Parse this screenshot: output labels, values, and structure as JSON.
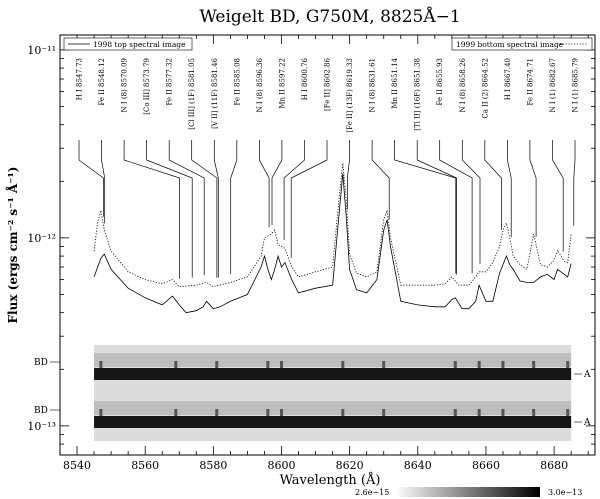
{
  "chart_data": {
    "type": "line",
    "title": "Weigelt BD, G750M, 8825Å−1",
    "xlabel": "Wavelength (Å)",
    "ylabel": "Flux (ergs cm⁻² s⁻¹ Å⁻¹)",
    "xlim": [
      8535,
      8692
    ],
    "ylim": [
      7e-14,
      1.2e-11
    ],
    "yscale": "log",
    "x_ticks": [
      8540,
      8560,
      8580,
      8600,
      8620,
      8640,
      8660,
      8680
    ],
    "y_ticks": [
      {
        "value": 1e-11,
        "label": "10⁻¹¹"
      },
      {
        "value": 1e-12,
        "label": "10⁻¹²"
      },
      {
        "value": 1e-13,
        "label": "10⁻¹³"
      }
    ],
    "legend": {
      "left": {
        "label": "1998 top spectral image",
        "placement": "top-left"
      },
      "right": {
        "label": "1999 bottom spectral image",
        "placement": "top-right"
      }
    },
    "series": [
      {
        "name": "1998 top spectral image",
        "style": "solid",
        "color": "#000000",
        "x": [
          8545,
          8547,
          8548,
          8550,
          8555,
          8560,
          8565,
          8568,
          8570,
          8572,
          8575,
          8577,
          8578,
          8580,
          8582,
          8585,
          8590,
          8594,
          8595,
          8596,
          8597,
          8598,
          8599,
          8600,
          8601,
          8603,
          8605,
          8610,
          8615,
          8617,
          8618,
          8619,
          8620,
          8622,
          8625,
          8628,
          8630,
          8631,
          8632,
          8635,
          8640,
          8645,
          8648,
          8650,
          8651,
          8653,
          8655,
          8657,
          8658,
          8660,
          8662,
          8664,
          8666,
          8667,
          8668,
          8670,
          8672,
          8674,
          8676,
          8678,
          8680,
          8681,
          8683,
          8684,
          8685
        ],
        "y": [
          6.2e-13,
          7.8e-13,
          8.2e-13,
          6.8e-13,
          5.4e-13,
          4.8e-13,
          4.4e-13,
          4.9e-13,
          4.4e-13,
          4e-13,
          4.1e-13,
          4.3e-13,
          4.6e-13,
          4.2e-13,
          4.3e-13,
          4.6e-13,
          5e-13,
          7e-13,
          8e-13,
          6.8e-13,
          6e-13,
          6.8e-13,
          8e-13,
          7e-13,
          7.4e-13,
          6e-13,
          5.1e-13,
          5.4e-13,
          5.6e-13,
          1.4e-12,
          2.2e-12,
          1.3e-12,
          6.8e-13,
          5.3e-13,
          5.1e-13,
          6e-13,
          1.1e-12,
          1.25e-12,
          9e-13,
          4.6e-13,
          4.4e-13,
          4.3e-13,
          4.3e-13,
          4.7e-13,
          4.8e-13,
          4.2e-13,
          4.2e-13,
          4.6e-13,
          5.6e-13,
          4.6e-13,
          4.6e-13,
          6.5e-13,
          8e-13,
          7.2e-13,
          6.8e-13,
          5.9e-13,
          5.8e-13,
          5.8e-13,
          6.2e-13,
          6.4e-13,
          6e-13,
          6.8e-13,
          6.4e-13,
          6.2e-13,
          7.3e-13
        ]
      },
      {
        "name": "1999 bottom spectral image",
        "style": "dotted",
        "color": "#000000",
        "x": [
          8545,
          8546,
          8547,
          8548,
          8550,
          8555,
          8560,
          8565,
          8568,
          8570,
          8575,
          8578,
          8580,
          8585,
          8590,
          8594,
          8595,
          8597,
          8598,
          8599,
          8600,
          8601,
          8603,
          8605,
          8610,
          8615,
          8617,
          8618,
          8619,
          8620,
          8622,
          8625,
          8628,
          8630,
          8631,
          8632,
          8635,
          8640,
          8645,
          8648,
          8650,
          8652,
          8655,
          8657,
          8658,
          8660,
          8662,
          8664,
          8665,
          8666,
          8667,
          8668,
          8670,
          8672,
          8674,
          8676,
          8678,
          8680,
          8681,
          8683,
          8684,
          8685
        ],
        "y": [
          8.5e-13,
          1.2e-12,
          1.4e-12,
          1.1e-12,
          8.5e-13,
          6.6e-13,
          6e-13,
          5.7e-13,
          6e-13,
          5.5e-13,
          5.6e-13,
          5.8e-13,
          5.5e-13,
          5.8e-13,
          6.2e-13,
          8e-13,
          1e-12,
          1.05e-12,
          1.1e-12,
          9.2e-13,
          9e-13,
          8.8e-13,
          7e-13,
          6.2e-13,
          6.6e-13,
          7e-13,
          1.7e-12,
          2.5e-12,
          1.6e-12,
          8.2e-13,
          6.5e-13,
          6.2e-13,
          6.6e-13,
          1.25e-12,
          1.4e-12,
          1e-12,
          5.6e-13,
          5.6e-13,
          5.6e-13,
          5.7e-13,
          6.2e-13,
          5.6e-13,
          5.6e-13,
          6.2e-13,
          6.6e-13,
          6.6e-13,
          7.4e-13,
          9e-13,
          1.1e-12,
          1.2e-12,
          1e-12,
          8e-13,
          7.2e-13,
          6.8e-13,
          1.05e-12,
          7.2e-13,
          7e-13,
          7.6e-13,
          8.6e-13,
          7.5e-13,
          7.4e-13,
          1.05e-12
        ]
      }
    ],
    "line_ids": [
      {
        "label": "H I 8547.73",
        "wl": 8547.73
      },
      {
        "label": "Fe II 8548.12",
        "wl": 8548.12
      },
      {
        "label": "N I (8) 8570.09",
        "wl": 8570.09
      },
      {
        "label": "[Co III] 8573.79",
        "wl": 8573.79
      },
      {
        "label": "Fe II 8577.32",
        "wl": 8577.32
      },
      {
        "label": "[Cl III] (1F) 8581.05",
        "wl": 8581.05
      },
      {
        "label": "[V II] (11F) 8581.46",
        "wl": 8581.46
      },
      {
        "label": "Fe II 8585.08",
        "wl": 8585.08
      },
      {
        "label": "N I (8) 8596.36",
        "wl": 8596.36
      },
      {
        "label": "Mn II 8597.22",
        "wl": 8597.22
      },
      {
        "label": "H I 8600.76",
        "wl": 8600.76
      },
      {
        "label": "[Fe II] 8602.86",
        "wl": 8602.86
      },
      {
        "label": "[Fe II] (13F) 8619.33",
        "wl": 8619.33
      },
      {
        "label": "N I (8) 8631.61",
        "wl": 8631.61
      },
      {
        "label": "Mn II 8651.14",
        "wl": 8651.14
      },
      {
        "label": "[Ti II] (16F) 8651.38",
        "wl": 8651.38
      },
      {
        "label": "Fe II 8655.93",
        "wl": 8655.93
      },
      {
        "label": "N I (8) 8658.26",
        "wl": 8658.26
      },
      {
        "label": "Ca II (2) 8664.52",
        "wl": 8664.52
      },
      {
        "label": "H I 8667.40",
        "wl": 8667.4
      },
      {
        "label": "Fe II 8674.71",
        "wl": 8674.71
      },
      {
        "label": "N I (1) 8682.67",
        "wl": 8682.67
      },
      {
        "label": "N I (1) 8685.79",
        "wl": 8685.79
      }
    ],
    "strip_labels": {
      "left": "BD",
      "right": "A"
    },
    "colorbar": {
      "min_label": "2.6e−15",
      "max_label": "3.0e−13"
    },
    "strip_features": [
      8547,
      8569,
      8581,
      8596,
      8600,
      8618,
      8630,
      8651,
      8658,
      8665,
      8674,
      8684
    ]
  }
}
